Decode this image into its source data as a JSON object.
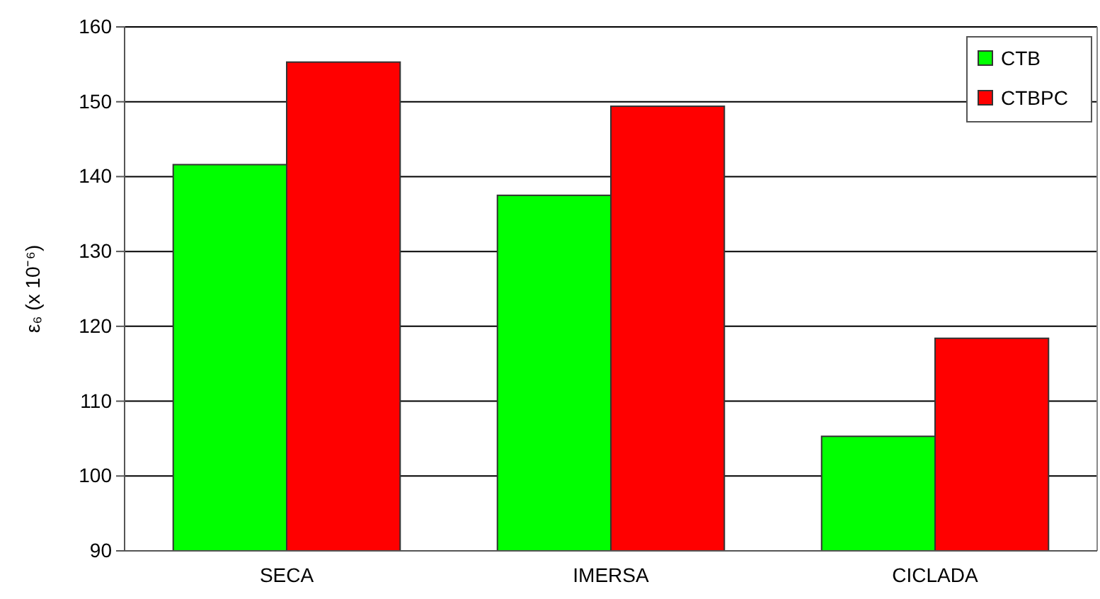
{
  "chart_data": {
    "type": "bar",
    "ylabel": "ε₆ (x 10⁻⁶)",
    "categories": [
      "SECA",
      "IMERSA",
      "CICLADA"
    ],
    "series": [
      {
        "name": "CTB",
        "color": "#00ff00",
        "values": [
          141.6,
          137.5,
          105.3
        ]
      },
      {
        "name": "CTBPC",
        "color": "#ff0000",
        "values": [
          155.3,
          149.4,
          118.4
        ]
      }
    ],
    "ylim": [
      90,
      160
    ],
    "yticks": [
      90,
      100,
      110,
      120,
      130,
      140,
      150,
      160
    ],
    "grid": "y",
    "legend": "top right"
  }
}
